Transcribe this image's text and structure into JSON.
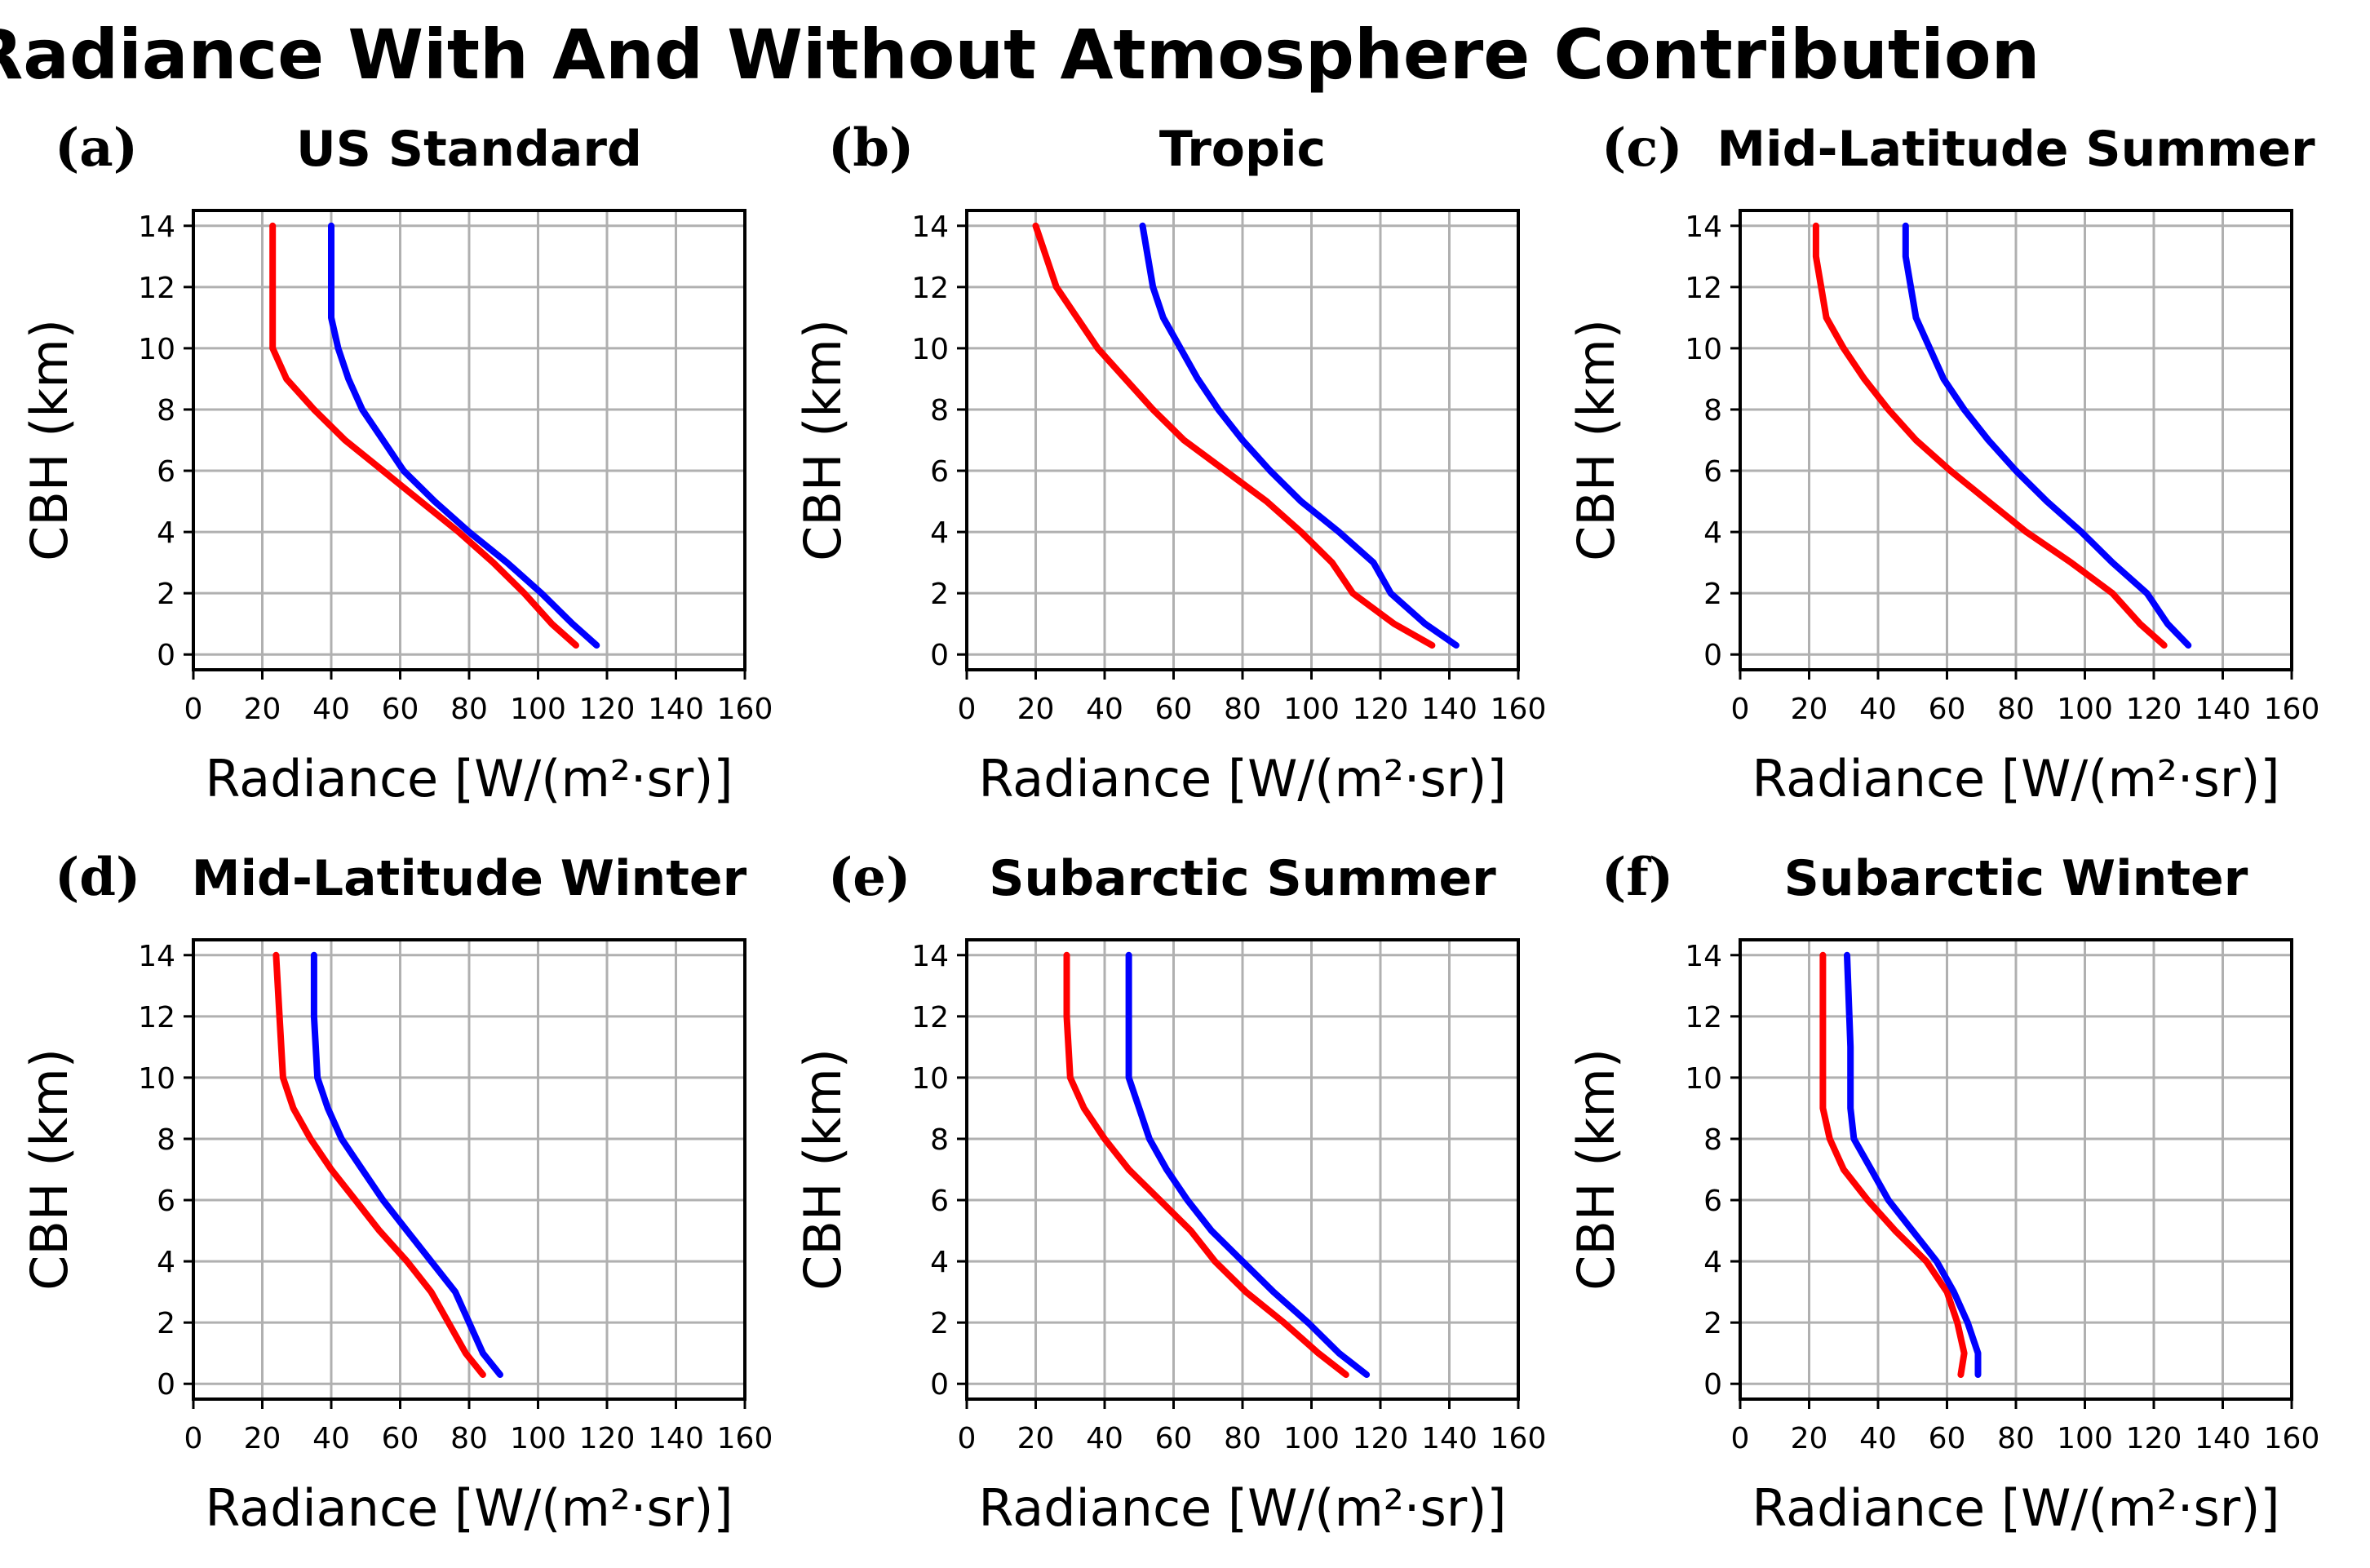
{
  "figure_title": "Radiance With And Without Atmosphere Contribution",
  "colors": {
    "with_atmosphere": "#ff0000",
    "without_atmosphere": "#0000ff",
    "grid": "#b0b0b0",
    "axis": "#000000"
  },
  "chart_data": [
    {
      "type": "line",
      "panel": "(a)",
      "title": "US Standard",
      "xlabel": "Radiance [W/(m²·sr)]",
      "ylabel": "CBH (km)",
      "xlim": [
        0,
        160
      ],
      "ylim": [
        -0.5,
        14.5
      ],
      "xticks": [
        0,
        20,
        40,
        60,
        80,
        100,
        120,
        140,
        160
      ],
      "yticks": [
        0,
        2,
        4,
        6,
        8,
        10,
        12,
        14
      ],
      "grid": true,
      "series": [
        {
          "name": "red",
          "color": "#ff0000",
          "x": [
            111,
            104,
            96,
            87,
            77,
            66,
            55,
            44,
            35,
            27,
            23,
            23,
            23
          ],
          "y": [
            0.3,
            1,
            2,
            3,
            4,
            5,
            6,
            7,
            8,
            9,
            10,
            11,
            14
          ]
        },
        {
          "name": "blue",
          "color": "#0000ff",
          "x": [
            117,
            110,
            101,
            91,
            80,
            70,
            61,
            55,
            49,
            45,
            42,
            40,
            40
          ],
          "y": [
            0.3,
            1,
            2,
            3,
            4,
            5,
            6,
            7,
            8,
            9,
            10,
            11,
            14
          ]
        }
      ]
    },
    {
      "type": "line",
      "panel": "(b)",
      "title": "Tropic",
      "xlabel": "Radiance [W/(m²·sr)]",
      "ylabel": "CBH (km)",
      "xlim": [
        0,
        160
      ],
      "ylim": [
        -0.5,
        14.5
      ],
      "xticks": [
        0,
        20,
        40,
        60,
        80,
        100,
        120,
        140,
        160
      ],
      "yticks": [
        0,
        2,
        4,
        6,
        8,
        10,
        12,
        14
      ],
      "grid": true,
      "series": [
        {
          "name": "red",
          "color": "#ff0000",
          "x": [
            135,
            124,
            112,
            106,
            97,
            87,
            75,
            63,
            54,
            46,
            38,
            32,
            26,
            20
          ],
          "y": [
            0.3,
            1,
            2,
            3,
            4,
            5,
            6,
            7,
            8,
            9,
            10,
            11,
            12,
            14
          ]
        },
        {
          "name": "blue",
          "color": "#0000ff",
          "x": [
            142,
            133,
            123,
            118,
            108,
            97,
            88,
            80,
            73,
            67,
            62,
            57,
            54,
            51
          ],
          "y": [
            0.3,
            1,
            2,
            3,
            4,
            5,
            6,
            7,
            8,
            9,
            10,
            11,
            12,
            14
          ]
        }
      ]
    },
    {
      "type": "line",
      "panel": "(c)",
      "title": "Mid-Latitude Summer",
      "xlabel": "Radiance [W/(m²·sr)]",
      "ylabel": "CBH (km)",
      "xlim": [
        0,
        160
      ],
      "ylim": [
        -0.5,
        14.5
      ],
      "xticks": [
        0,
        20,
        40,
        60,
        80,
        100,
        120,
        140,
        160
      ],
      "yticks": [
        0,
        2,
        4,
        6,
        8,
        10,
        12,
        14
      ],
      "grid": true,
      "series": [
        {
          "name": "red",
          "color": "#ff0000",
          "x": [
            123,
            116,
            108,
            96,
            83,
            72,
            61,
            51,
            43,
            36,
            30,
            25,
            22,
            22
          ],
          "y": [
            0.3,
            1,
            2,
            3,
            4,
            5,
            6,
            7,
            8,
            9,
            10,
            11,
            13,
            14
          ]
        },
        {
          "name": "blue",
          "color": "#0000ff",
          "x": [
            130,
            124,
            118,
            108,
            99,
            89,
            80,
            72,
            65,
            59,
            55,
            51,
            48,
            48
          ],
          "y": [
            0.3,
            1,
            2,
            3,
            4,
            5,
            6,
            7,
            8,
            9,
            10,
            11,
            13,
            14
          ]
        }
      ]
    },
    {
      "type": "line",
      "panel": "(d)",
      "title": "Mid-Latitude Winter",
      "xlabel": "Radiance [W/(m²·sr)]",
      "ylabel": "CBH (km)",
      "xlim": [
        0,
        160
      ],
      "ylim": [
        -0.5,
        14.5
      ],
      "xticks": [
        0,
        20,
        40,
        60,
        80,
        100,
        120,
        140,
        160
      ],
      "yticks": [
        0,
        2,
        4,
        6,
        8,
        10,
        12,
        14
      ],
      "grid": true,
      "series": [
        {
          "name": "red",
          "color": "#ff0000",
          "x": [
            84,
            79,
            74,
            69,
            62,
            54,
            47,
            40,
            34,
            29,
            26,
            25,
            24
          ],
          "y": [
            0.3,
            1,
            2,
            3,
            4,
            5,
            6,
            7,
            8,
            9,
            10,
            12,
            14
          ]
        },
        {
          "name": "blue",
          "color": "#0000ff",
          "x": [
            89,
            84,
            80,
            76,
            69,
            62,
            55,
            49,
            43,
            39,
            36,
            35,
            35
          ],
          "y": [
            0.3,
            1,
            2,
            3,
            4,
            5,
            6,
            7,
            8,
            9,
            10,
            12,
            14
          ]
        }
      ]
    },
    {
      "type": "line",
      "panel": "(e)",
      "title": "Subarctic Summer",
      "xlabel": "Radiance [W/(m²·sr)]",
      "ylabel": "CBH (km)",
      "xlim": [
        0,
        160
      ],
      "ylim": [
        -0.5,
        14.5
      ],
      "xticks": [
        0,
        20,
        40,
        60,
        80,
        100,
        120,
        140,
        160
      ],
      "yticks": [
        0,
        2,
        4,
        6,
        8,
        10,
        12,
        14
      ],
      "grid": true,
      "series": [
        {
          "name": "red",
          "color": "#ff0000",
          "x": [
            110,
            102,
            92,
            81,
            72,
            65,
            56,
            47,
            40,
            34,
            30,
            29,
            29
          ],
          "y": [
            0.3,
            1,
            2,
            3,
            4,
            5,
            6,
            7,
            8,
            9,
            10,
            12,
            14
          ]
        },
        {
          "name": "blue",
          "color": "#0000ff",
          "x": [
            116,
            108,
            99,
            89,
            80,
            71,
            64,
            58,
            53,
            50,
            47,
            47,
            47
          ],
          "y": [
            0.3,
            1,
            2,
            3,
            4,
            5,
            6,
            7,
            8,
            9,
            10,
            12,
            14
          ]
        }
      ]
    },
    {
      "type": "line",
      "panel": "(f)",
      "title": "Subarctic Winter",
      "xlabel": "Radiance [W/(m²·sr)]",
      "ylabel": "CBH (km)",
      "xlim": [
        0,
        160
      ],
      "ylim": [
        -0.5,
        14.5
      ],
      "xticks": [
        0,
        20,
        40,
        60,
        80,
        100,
        120,
        140,
        160
      ],
      "yticks": [
        0,
        2,
        4,
        6,
        8,
        10,
        12,
        14
      ],
      "grid": true,
      "series": [
        {
          "name": "red",
          "color": "#ff0000",
          "x": [
            64,
            65,
            63,
            60,
            54,
            45,
            37,
            30,
            26,
            24,
            24,
            24
          ],
          "y": [
            0.3,
            1,
            2,
            3,
            4,
            5,
            6,
            7,
            8,
            9,
            11,
            14
          ]
        },
        {
          "name": "blue",
          "color": "#0000ff",
          "x": [
            69,
            69,
            66,
            62,
            57,
            50,
            43,
            38,
            33,
            32,
            32,
            31
          ],
          "y": [
            0.3,
            1,
            2,
            3,
            4,
            5,
            6,
            7,
            8,
            9,
            11,
            14
          ]
        }
      ]
    }
  ]
}
